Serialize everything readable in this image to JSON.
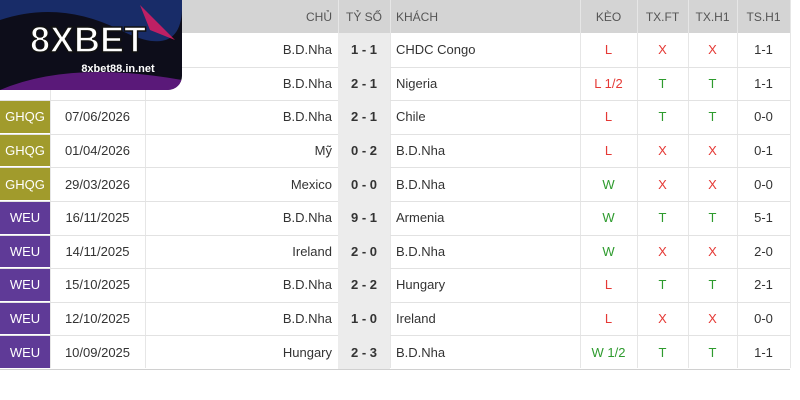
{
  "logo": {
    "brand": "8XBET",
    "site": "8xbet88.in.net"
  },
  "header": [
    "CHỦ",
    "TỶ SỐ",
    "KHÁCH",
    "KÈO",
    "TX.FT",
    "TX.H1",
    "TS.H1"
  ],
  "league_colors": {
    "GHQG": "#a19b2c",
    "WEU": "#5f3a97"
  },
  "rows": [
    {
      "home": "B.D.Nha",
      "score": "1 - 1",
      "away": "CHDC Congo",
      "keo": "L",
      "tx_ft": "X",
      "tx_h1": "X",
      "ts_h1": "1-1"
    },
    {
      "home": "B.D.Nha",
      "score": "2 - 1",
      "away": "Nigeria",
      "keo": "L 1/2",
      "tx_ft": "T",
      "tx_h1": "T",
      "ts_h1": "1-1"
    },
    {
      "league": "GHQG",
      "date": "07/06/2026",
      "home": "B.D.Nha",
      "score": "2 - 1",
      "away": "Chile",
      "keo": "L",
      "tx_ft": "T",
      "tx_h1": "T",
      "ts_h1": "0-0"
    },
    {
      "league": "GHQG",
      "date": "01/04/2026",
      "home": "Mỹ",
      "score": "0 - 2",
      "away": "B.D.Nha",
      "keo": "L",
      "tx_ft": "X",
      "tx_h1": "X",
      "ts_h1": "0-1"
    },
    {
      "league": "GHQG",
      "date": "29/03/2026",
      "home": "Mexico",
      "score": "0 - 0",
      "away": "B.D.Nha",
      "keo": "W",
      "tx_ft": "X",
      "tx_h1": "X",
      "ts_h1": "0-0"
    },
    {
      "league": "WEU",
      "date": "16/11/2025",
      "home": "B.D.Nha",
      "score": "9 - 1",
      "away": "Armenia",
      "keo": "W",
      "tx_ft": "T",
      "tx_h1": "T",
      "ts_h1": "5-1"
    },
    {
      "league": "WEU",
      "date": "14/11/2025",
      "home": "Ireland",
      "score": "2 - 0",
      "away": "B.D.Nha",
      "keo": "W",
      "tx_ft": "X",
      "tx_h1": "X",
      "ts_h1": "2-0"
    },
    {
      "league": "WEU",
      "date": "15/10/2025",
      "home": "B.D.Nha",
      "score": "2 - 2",
      "away": "Hungary",
      "keo": "L",
      "tx_ft": "T",
      "tx_h1": "T",
      "ts_h1": "2-1"
    },
    {
      "league": "WEU",
      "date": "12/10/2025",
      "home": "B.D.Nha",
      "score": "1 - 0",
      "away": "Ireland",
      "keo": "L",
      "tx_ft": "X",
      "tx_h1": "X",
      "ts_h1": "0-0"
    },
    {
      "league": "WEU",
      "date": "10/09/2025",
      "home": "Hungary",
      "score": "2 - 3",
      "away": "B.D.Nha",
      "keo": "W 1/2",
      "tx_ft": "T",
      "tx_h1": "T",
      "ts_h1": "1-1"
    }
  ]
}
